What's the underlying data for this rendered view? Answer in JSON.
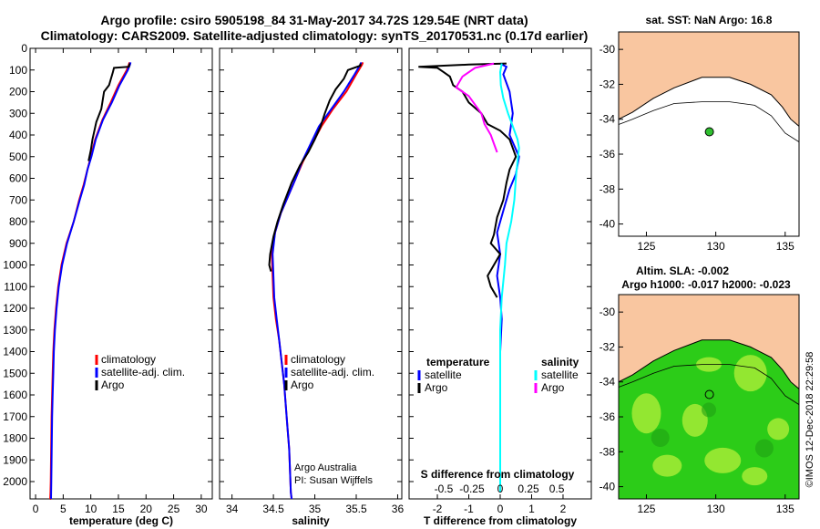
{
  "header": {
    "title_line1": "Argo profile: csiro 5905198_84 31-May-2017 34.72S 129.54E (NRT data)",
    "title_line2": "Climatology: CARS2009. Satellite-adjusted climatology: synTS_20170531.nc (0.17d earlier)"
  },
  "credits": {
    "line1": "Argo Australia",
    "line2": "PI: Susan Wijffels"
  },
  "watermark": "©IMOS 12-Dec-2018 22:29:58",
  "colors": {
    "climatology": "#ff0000",
    "satellite": "#0000ff",
    "argo": "#000000",
    "sat_salinity": "#00ffff",
    "argo_salinity": "#ff00ff",
    "land": "#f9c6a0",
    "ocean": "#ffffff"
  },
  "chart_data": [
    {
      "type": "line",
      "name": "temperature-panel",
      "xlabel": "temperature (deg C)",
      "ylabel": "",
      "xlim": [
        -1,
        32
      ],
      "ylim": [
        2080,
        0
      ],
      "xticks": [
        0,
        5,
        10,
        15,
        20,
        25,
        30
      ],
      "yticks": [
        0,
        100,
        200,
        300,
        400,
        500,
        600,
        700,
        800,
        900,
        1000,
        1100,
        1200,
        1300,
        1400,
        1500,
        1600,
        1700,
        1800,
        1900,
        2000
      ],
      "legend": [
        "climatology",
        "satellite-adj. clim.",
        "Argo"
      ],
      "legend_position": "lower-right",
      "series": [
        {
          "name": "climatology",
          "color": "#ff0000",
          "x": [
            17.0,
            16.9,
            16.5,
            15.0,
            13.6,
            12.1,
            10.8,
            10.0,
            9.4,
            8.7,
            7.9,
            6.9,
            5.6,
            4.7,
            4.1,
            3.7,
            3.4,
            3.2,
            3.1,
            3.0,
            2.9,
            2.85,
            2.8,
            2.75,
            2.7,
            2.65,
            2.6
          ],
          "y": [
            65,
            75,
            100,
            170,
            250,
            330,
            420,
            500,
            560,
            630,
            700,
            800,
            900,
            1000,
            1100,
            1200,
            1300,
            1400,
            1500,
            1600,
            1700,
            1800,
            1900,
            2000,
            2050,
            2080,
            2080
          ]
        },
        {
          "name": "satellite-adj. clim.",
          "color": "#0000ff",
          "x": [
            17.2,
            17.1,
            16.7,
            15.2,
            13.8,
            12.2,
            10.9,
            10.1,
            9.4,
            8.8,
            8.0,
            6.9,
            5.7,
            4.8,
            4.2,
            3.8,
            3.5,
            3.3,
            3.2,
            3.1,
            3.0,
            2.95,
            2.9,
            2.85,
            2.8
          ],
          "y": [
            65,
            75,
            100,
            170,
            250,
            330,
            420,
            500,
            560,
            630,
            700,
            800,
            900,
            1000,
            1100,
            1200,
            1300,
            1400,
            1500,
            1600,
            1700,
            1800,
            1900,
            2000,
            2080
          ]
        },
        {
          "name": "Argo",
          "color": "#000000",
          "x": [
            17.0,
            16.9,
            14.2,
            14.0,
            13.3,
            12.4,
            11.9,
            11.0,
            10.3,
            10.0,
            9.6
          ],
          "y": [
            70,
            85,
            90,
            110,
            170,
            200,
            280,
            340,
            420,
            470,
            520
          ]
        }
      ]
    },
    {
      "type": "line",
      "name": "salinity-panel",
      "xlabel": "salinity",
      "xlim": [
        33.85,
        36.05
      ],
      "ylim": [
        2080,
        0
      ],
      "xticks": [
        34,
        34.5,
        35,
        35.5,
        36
      ],
      "legend": [
        "climatology",
        "satellite-adj. clim.",
        "Argo"
      ],
      "legend_position": "lower-right",
      "series": [
        {
          "name": "climatology",
          "color": "#ff0000",
          "x": [
            35.58,
            35.57,
            35.5,
            35.38,
            35.22,
            35.08,
            34.97,
            34.86,
            34.77,
            34.68,
            34.59,
            34.52,
            34.48,
            34.49,
            34.5,
            34.53,
            34.57,
            34.6,
            34.63,
            34.65,
            34.67,
            34.69,
            34.7,
            34.71,
            34.72
          ],
          "y": [
            65,
            75,
            120,
            200,
            280,
            360,
            440,
            520,
            600,
            680,
            760,
            850,
            950,
            1050,
            1150,
            1250,
            1350,
            1450,
            1550,
            1650,
            1750,
            1850,
            1950,
            2050,
            2080
          ]
        },
        {
          "name": "satellite-adj. clim.",
          "color": "#0000ff",
          "x": [
            35.56,
            35.55,
            35.48,
            35.35,
            35.2,
            35.05,
            34.95,
            34.85,
            34.77,
            34.68,
            34.59,
            34.52,
            34.49,
            34.5,
            34.51,
            34.54,
            34.57,
            34.6,
            34.63,
            34.65,
            34.67,
            34.69,
            34.7,
            34.71,
            34.72
          ],
          "y": [
            65,
            75,
            120,
            200,
            280,
            360,
            440,
            520,
            600,
            680,
            760,
            850,
            950,
            1050,
            1150,
            1250,
            1350,
            1450,
            1550,
            1650,
            1750,
            1850,
            1950,
            2050,
            2080
          ]
        },
        {
          "name": "Argo",
          "color": "#000000",
          "x": [
            35.55,
            35.55,
            35.4,
            35.35,
            35.25,
            35.18,
            35.12,
            35.07,
            35.0,
            34.92,
            34.82,
            34.72,
            34.62,
            34.55,
            34.5,
            34.46,
            34.45,
            34.47
          ],
          "y": [
            70,
            80,
            100,
            140,
            190,
            240,
            300,
            360,
            420,
            480,
            540,
            620,
            720,
            800,
            870,
            950,
            1000,
            1030
          ]
        }
      ]
    },
    {
      "type": "line",
      "name": "difference-panel",
      "xlabel": "T difference from climatology",
      "x2label": "S difference from climatology",
      "xlim": [
        -2.9,
        2.9
      ],
      "ylim": [
        2080,
        0
      ],
      "xticks": [
        -2,
        -1,
        0,
        1,
        2
      ],
      "x2ticks": [
        "-0.5",
        "-0.25",
        "0",
        "0.25",
        "0.5"
      ],
      "legend_left_title": "temperature",
      "legend_right_title": "salinity",
      "legend_left": [
        "satellite",
        "Argo"
      ],
      "legend_right": [
        "satellite",
        "Argo"
      ],
      "series": [
        {
          "name": "T satellite",
          "color": "#0000ff",
          "x": [
            0,
            0.2,
            0.1,
            0.3,
            0.4,
            0.3,
            0.6,
            0.5,
            0.3,
            0.1,
            -0.1,
            0.0,
            -0.1,
            0.0,
            0.05,
            0.0,
            0.0,
            0.0,
            0.0
          ],
          "y": [
            70,
            85,
            120,
            200,
            300,
            400,
            500,
            580,
            650,
            750,
            850,
            950,
            1050,
            1150,
            1250,
            1400,
            1600,
            1800,
            2050
          ]
        },
        {
          "name": "T Argo",
          "color": "#000000",
          "x": [
            0.2,
            -1.0,
            -2.6,
            -2.0,
            -1.8,
            -1.6,
            -1.5,
            -1.2,
            -1.0,
            -0.6,
            -0.4,
            0.0,
            0.3,
            0.4,
            0.5,
            0.3,
            0.2,
            0.1,
            -0.1,
            -0.2,
            -0.3,
            0.0,
            -0.2,
            -0.4,
            -0.3,
            -0.1
          ],
          "y": [
            70,
            75,
            85,
            90,
            110,
            130,
            170,
            200,
            250,
            300,
            350,
            380,
            420,
            460,
            500,
            560,
            620,
            700,
            780,
            860,
            900,
            950,
            1000,
            1050,
            1100,
            1150
          ]
        },
        {
          "name": "S satellite",
          "color": "#00ffff",
          "x": [
            0.05,
            0.0,
            0.02,
            0.1,
            0.25,
            0.4,
            0.55,
            0.6,
            0.55,
            0.5,
            0.45,
            0.35,
            0.2,
            0.15,
            0.05,
            0.0,
            0.0,
            0.0
          ],
          "y": [
            70,
            110,
            170,
            230,
            300,
            360,
            420,
            460,
            520,
            600,
            700,
            800,
            900,
            1000,
            1150,
            1300,
            1600,
            2050
          ]
        },
        {
          "name": "S Argo",
          "color": "#ff00ff",
          "x": [
            -0.2,
            -0.8,
            -1.2,
            -1.4,
            -1.0,
            -0.8,
            -0.6,
            -0.5,
            -0.3,
            -0.2,
            -0.1
          ],
          "y": [
            70,
            90,
            130,
            180,
            220,
            260,
            300,
            350,
            400,
            440,
            480
          ]
        }
      ]
    }
  ],
  "maps": {
    "top": {
      "title": "sat. SST: NaN Argo: 16.8",
      "xticks": [
        "125",
        "130",
        "135"
      ],
      "yticks": [
        "-30",
        "-32",
        "-34",
        "-36",
        "-38",
        "-40"
      ],
      "float_lon": 129.54,
      "float_lat": -34.72
    },
    "bottom": {
      "title_line1": "Altim. SLA: -0.002",
      "title_line2": "Argo h1000: -0.017 h2000: -0.023",
      "xticks": [
        "125",
        "130",
        "135"
      ],
      "yticks": [
        "-30",
        "-32",
        "-34",
        "-36",
        "-38",
        "-40"
      ],
      "float_lon": 129.54,
      "float_lat": -34.72
    }
  }
}
